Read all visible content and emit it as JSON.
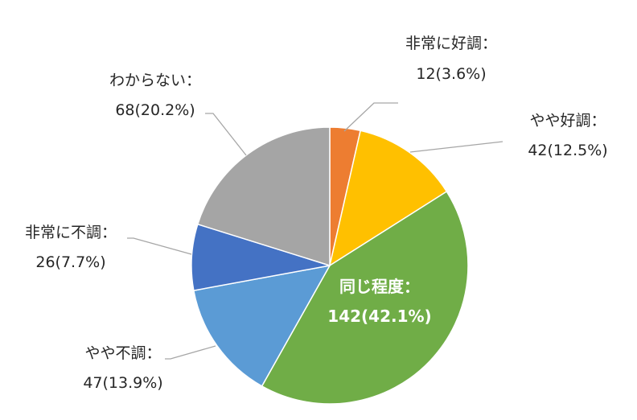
{
  "chart_data": {
    "type": "pie",
    "start_angle_deg": 0,
    "direction": "clockwise",
    "slices": [
      {
        "category": "非常に好調：",
        "value": 12,
        "percent_label": "12(3.6%)",
        "color": "#ED7D31"
      },
      {
        "category": "やや好調：",
        "value": 42,
        "percent_label": "42(12.5%)",
        "color": "#FFC000"
      },
      {
        "category": "同じ程度：",
        "value": 142,
        "percent_label": "142(42.1%)",
        "color": "#70AD47"
      },
      {
        "category": "やや不調：",
        "value": 47,
        "percent_label": "47(13.9%)",
        "color": "#5B9BD5"
      },
      {
        "category": "非常に不調：",
        "value": 26,
        "percent_label": "26(7.7%)",
        "color": "#4472C4"
      },
      {
        "category": "わからない：",
        "value": 68,
        "percent_label": "68(20.2%)",
        "color": "#A5A5A5"
      }
    ]
  }
}
